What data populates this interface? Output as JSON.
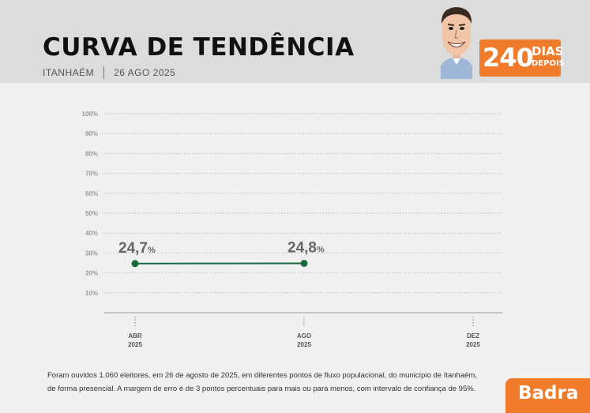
{
  "header": {
    "title": "CURVA DE TENDÊNCIA",
    "city": "ITANHAÉM",
    "date": "26 AGO 2025",
    "badge_number": "240",
    "badge_word1": "DIAS",
    "badge_word2": "DEPOIS"
  },
  "chart_data": {
    "type": "line",
    "y_ticks": [
      "100%",
      "90%",
      "80%",
      "70%",
      "60%",
      "50%",
      "40%",
      "30%",
      "20%",
      "10%"
    ],
    "ylim": [
      0,
      100
    ],
    "x_ticks": [
      {
        "month": "ABR",
        "year": "2025"
      },
      {
        "month": "AGO",
        "year": "2025"
      },
      {
        "month": "DEZ",
        "year": "2025"
      }
    ],
    "series": [
      {
        "color": "#1a6b3c",
        "points": [
          {
            "x": "ABR 2025",
            "y": 24.7,
            "label_num": "24,7",
            "label_unit": "%"
          },
          {
            "x": "AGO 2025",
            "y": 24.8,
            "label_num": "24,8",
            "label_unit": "%"
          }
        ]
      }
    ],
    "grid": true
  },
  "footnote": {
    "line1": "Foram ouvidos 1.060 eleitores, em 26 de agosto de 2025, em diferentes pontos de fluxo populacional, do município de Itanhaém,",
    "line2": "de forma presencial. A margem de erro é de 3 pontos percentuais para mais ou para menos, com intervalo de confiança de 95%."
  },
  "brand": {
    "name": "Badra"
  },
  "colors": {
    "accent": "#f07b2a",
    "line": "#1a6b3c",
    "header_bg": "#dcdcdc",
    "page_bg": "#f0f0f0"
  }
}
